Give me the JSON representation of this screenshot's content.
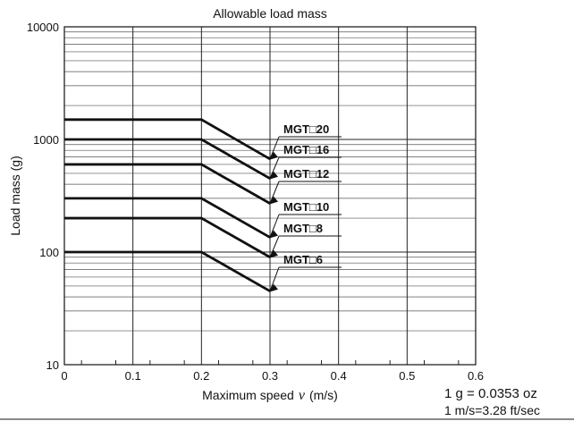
{
  "chart_data": {
    "type": "line",
    "title": "Allowable load mass",
    "xlabel": "Maximum speed",
    "xlabel_symbol": "v",
    "xlabel_unit": "(m/s)",
    "ylabel": "Load mass (g)",
    "x_ticks": [
      "0",
      "0.1",
      "0.2",
      "0.3",
      "0.4",
      "0.5",
      "0.6"
    ],
    "xlim": [
      0,
      0.6
    ],
    "y_ticks": [
      "10",
      "100",
      "1000",
      "10000"
    ],
    "ylim": [
      10,
      10000
    ],
    "y_scale": "log",
    "grid": true,
    "series": [
      {
        "name": "MGT□20",
        "points": [
          [
            0,
            1500
          ],
          [
            0.2,
            1500
          ],
          [
            0.3,
            670
          ]
        ]
      },
      {
        "name": "MGT□16",
        "points": [
          [
            0,
            1000
          ],
          [
            0.2,
            1000
          ],
          [
            0.3,
            450
          ]
        ]
      },
      {
        "name": "MGT□12",
        "points": [
          [
            0,
            600
          ],
          [
            0.2,
            600
          ],
          [
            0.3,
            270
          ]
        ]
      },
      {
        "name": "MGT□10",
        "points": [
          [
            0,
            300
          ],
          [
            0.2,
            300
          ],
          [
            0.3,
            135
          ]
        ]
      },
      {
        "name": "MGT□8",
        "points": [
          [
            0,
            200
          ],
          [
            0.2,
            200
          ],
          [
            0.3,
            90
          ]
        ]
      },
      {
        "name": "MGT□6",
        "points": [
          [
            0,
            100
          ],
          [
            0.2,
            100
          ],
          [
            0.3,
            45
          ]
        ]
      }
    ]
  },
  "notes": {
    "conversion_mass": "1 g = 0.0353 oz",
    "conversion_speed": "1 m/s=3.28 ft/sec"
  }
}
